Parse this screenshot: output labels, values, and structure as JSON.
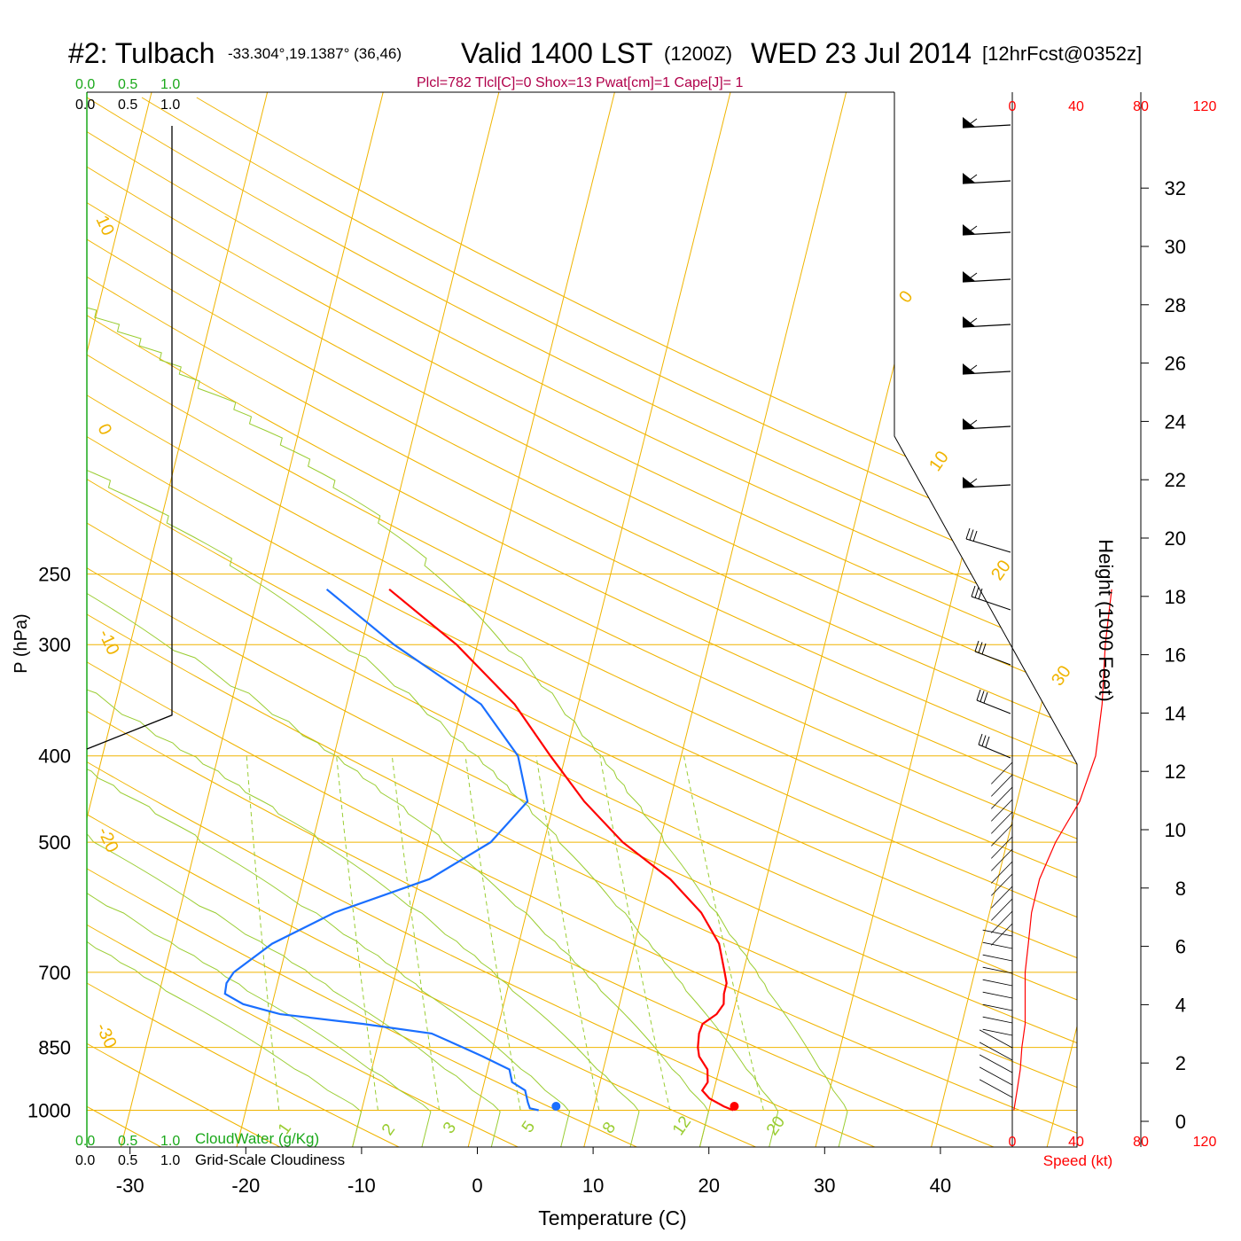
{
  "header": {
    "station": "#2: Tulbach",
    "coords": "-33.304°,19.1387° (36,46)",
    "valid": "Valid 1400 LST",
    "zulu": "(1200Z)",
    "date": "WED 23 Jul 2014",
    "forecast": "[12hrFcst@0352z]",
    "indices": "Plcl=782 Tlcl[C]=0 Shox=13 Pwat[cm]=1 Cape[J]= 1"
  },
  "cloud_axes": {
    "top_green": [
      "0.0",
      "0.5",
      "1.0"
    ],
    "top_black": [
      "0.0",
      "0.5",
      "1.0"
    ],
    "bottom_green": [
      "0.0",
      "0.5",
      "1.0"
    ],
    "bottom_black": [
      "0.0",
      "0.5",
      "1.0"
    ],
    "cloudwater_label": "CloudWater (g/Kg)",
    "cloudiness_label": "Grid-Scale Cloudiness"
  },
  "speed_axis": {
    "ticks": [
      "0",
      "40",
      "80",
      "120"
    ],
    "label": "Speed (kt)"
  },
  "colors": {
    "temperature": "#ff0000",
    "dewpoint": "#1a6fff",
    "isobar": "#f0b400",
    "isotherm": "#f0b400",
    "dry_adiabat": "#9acd32",
    "moist_adiabat": "#9acd32",
    "mixing_ratio": "#9acd32",
    "cloudwater": "#1aa81a",
    "wind_speed": "#ff0000",
    "barbs": "#000000"
  },
  "chart_data": {
    "type": "line",
    "subtype": "skew-T log-P sounding",
    "xlabel": "Temperature (C)",
    "ylabel": "P (hPa)",
    "y2label": "Height (1000 Feet)",
    "x_ticks": [
      "-30",
      "-20",
      "-10",
      "0",
      "10",
      "20",
      "30",
      "40"
    ],
    "pressure_ticks": [
      "250",
      "300",
      "400",
      "500",
      "700",
      "850",
      "1000"
    ],
    "height_ticks": [
      "0",
      "2",
      "4",
      "6",
      "8",
      "10",
      "12",
      "14",
      "16",
      "18",
      "20",
      "22",
      "24",
      "26",
      "28",
      "30",
      "32"
    ],
    "isotherm_labels": [
      "10",
      "0",
      "-10",
      "-20",
      "-30",
      "0",
      "10",
      "20",
      "30"
    ],
    "mixing_ratio_labels": [
      "1",
      "2",
      "3",
      "5",
      "8",
      "12",
      "20"
    ],
    "series": [
      {
        "name": "Temperature",
        "points": [
          [
            1000,
            22.1
          ],
          [
            990,
            21.2
          ],
          [
            970,
            19.8
          ],
          [
            950,
            19.0
          ],
          [
            930,
            19.3
          ],
          [
            900,
            19.0
          ],
          [
            870,
            18.0
          ],
          [
            850,
            17.7
          ],
          [
            820,
            17.5
          ],
          [
            800,
            17.6
          ],
          [
            780,
            18.6
          ],
          [
            760,
            19.0
          ],
          [
            740,
            18.8
          ],
          [
            720,
            18.8
          ],
          [
            700,
            18.4
          ],
          [
            650,
            17.3
          ],
          [
            600,
            15.1
          ],
          [
            550,
            11.7
          ],
          [
            500,
            6.8
          ],
          [
            450,
            2.6
          ],
          [
            400,
            -1.3
          ],
          [
            350,
            -5.5
          ],
          [
            300,
            -11.8
          ],
          [
            260,
            -18.8
          ]
        ]
      },
      {
        "name": "Dew point",
        "points": [
          [
            1000,
            5.3
          ],
          [
            995,
            4.5
          ],
          [
            980,
            4.2
          ],
          [
            950,
            3.7
          ],
          [
            930,
            2.4
          ],
          [
            900,
            1.9
          ],
          [
            870,
            -0.7
          ],
          [
            850,
            -2.6
          ],
          [
            820,
            -5.6
          ],
          [
            800,
            -11.7
          ],
          [
            780,
            -19.1
          ],
          [
            760,
            -22.5
          ],
          [
            740,
            -24.3
          ],
          [
            720,
            -24.4
          ],
          [
            700,
            -24.0
          ],
          [
            650,
            -21.3
          ],
          [
            600,
            -16.6
          ],
          [
            550,
            -9.1
          ],
          [
            500,
            -4.6
          ],
          [
            450,
            -2.3
          ],
          [
            400,
            -4.1
          ],
          [
            350,
            -8.4
          ],
          [
            300,
            -17.2
          ],
          [
            260,
            -24.2
          ]
        ]
      }
    ],
    "surface_markers": {
      "temperature": 22.2,
      "dewpoint": 6.8
    },
    "cloud_fraction_profile": [
      [
        1.0,
        250
      ],
      [
        1.0,
        360
      ],
      [
        0.0,
        393
      ]
    ],
    "wind_speed_profile": [
      [
        1000,
        1
      ],
      [
        950,
        3
      ],
      [
        900,
        5
      ],
      [
        850,
        6
      ],
      [
        800,
        8
      ],
      [
        750,
        8
      ],
      [
        700,
        8
      ],
      [
        650,
        10
      ],
      [
        600,
        12
      ],
      [
        550,
        17
      ],
      [
        500,
        27
      ],
      [
        450,
        42
      ],
      [
        400,
        52
      ],
      [
        350,
        56
      ],
      [
        300,
        58
      ],
      [
        260,
        62
      ]
    ],
    "grid": true
  }
}
